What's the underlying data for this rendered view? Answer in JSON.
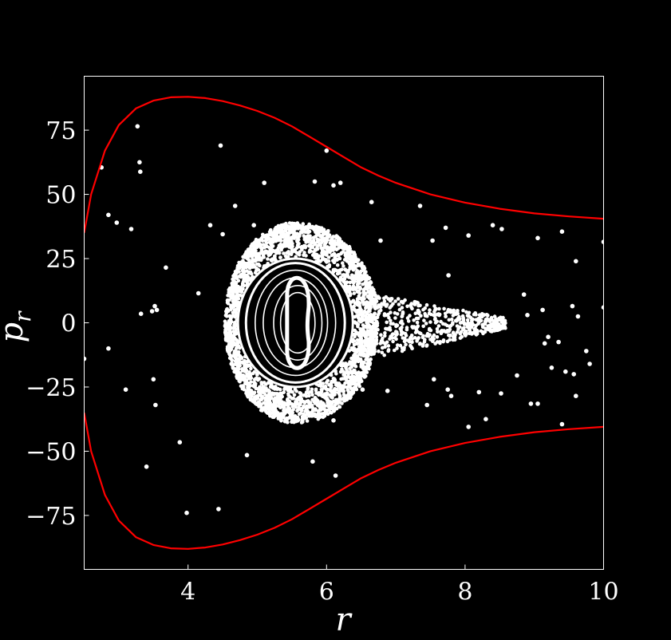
{
  "chart_data": {
    "type": "scatter",
    "title": "",
    "xlabel": "r",
    "ylabel": "p",
    "ylabel_sub": "r",
    "xlim": [
      2.5,
      10
    ],
    "ylim": [
      -96,
      96
    ],
    "xticks": [
      4,
      6,
      8,
      10
    ],
    "yticks": [
      -75,
      -50,
      -25,
      0,
      25,
      50,
      75
    ],
    "grid": false,
    "background": "#000000",
    "point_color": "#ffffff",
    "boundary_color": "#ff0000",
    "boundary": {
      "description": "upper curve p_r(r), mirrored for lower",
      "x": [
        2.5,
        2.6,
        2.8,
        3.0,
        3.25,
        3.5,
        3.75,
        4.0,
        4.25,
        4.5,
        4.75,
        5.0,
        5.25,
        5.5,
        5.75,
        6.0,
        6.25,
        6.5,
        6.75,
        7.0,
        7.5,
        8.0,
        8.5,
        9.0,
        9.5,
        10.0
      ],
      "y": [
        35,
        50,
        67,
        77,
        83.5,
        86.5,
        87.8,
        88,
        87.5,
        86.3,
        84.6,
        82.5,
        79.8,
        76.5,
        72.5,
        68.5,
        64.5,
        60.5,
        57.3,
        54.5,
        50,
        46.8,
        44.4,
        42.6,
        41.4,
        40.5
      ]
    },
    "scattered_points": {
      "x": [
        2.5,
        2.75,
        2.85,
        2.97,
        3.18,
        3.27,
        3.3,
        3.31,
        3.32,
        3.48,
        3.52,
        3.55,
        3.68,
        4.15,
        4.32,
        4.47,
        4.5,
        4.68,
        4.95,
        5.1,
        5.83,
        6.0,
        6.1,
        6.2,
        6.65,
        6.78,
        7.35,
        7.53,
        7.72,
        7.76,
        8.05,
        8.4,
        8.53,
        8.85,
        9.05,
        9.4,
        9.6,
        10.0,
        10.0,
        2.85,
        3.1,
        3.5,
        3.53,
        3.4,
        3.88,
        3.98,
        4.44,
        4.85,
        5.8,
        6.13,
        6.1,
        6.52,
        6.88,
        7.45,
        7.55,
        7.75,
        7.8,
        8.05,
        8.2,
        8.3,
        8.52,
        8.75,
        8.95,
        9.05,
        9.15,
        9.25,
        9.35,
        9.4,
        9.45,
        9.55,
        9.6,
        9.63,
        9.75,
        9.8,
        9.2,
        9.12,
        8.9,
        9.57
      ],
      "y": [
        -14,
        60.5,
        42,
        39,
        36.5,
        76.5,
        62.5,
        58.8,
        3.5,
        4.5,
        6.5,
        5,
        21.5,
        11.5,
        38,
        69,
        34.5,
        45.5,
        38,
        54.5,
        55,
        67,
        53.5,
        54.5,
        47,
        32,
        45.5,
        32,
        37,
        18.5,
        34,
        38,
        36.5,
        11,
        33,
        35.5,
        24,
        31.5,
        6,
        -10,
        -26,
        -22,
        -32,
        -56,
        -46.5,
        -74,
        -72.5,
        -51.5,
        -54,
        -59.5,
        -38,
        -26,
        -26.5,
        -32,
        -22,
        -26,
        -28.5,
        -40.5,
        -27,
        -37.5,
        -27.5,
        -20.5,
        -31.5,
        -31.5,
        -8,
        -17.5,
        -7.5,
        -39.5,
        -19,
        6.5,
        -28.5,
        2.5,
        -11,
        -16,
        -5.5,
        5,
        3,
        -20
      ]
    },
    "chaotic_sea": {
      "center_r": 5.55,
      "center_p": 0,
      "extent_r": [
        4.35,
        7.1
      ],
      "extent_p": [
        -38,
        40
      ],
      "tail_r": [
        6.6,
        8.6
      ],
      "tail_p": [
        -10,
        5
      ]
    },
    "island": {
      "center_r": 5.55,
      "center_p": 0,
      "outer_r_half": 0.83,
      "outer_p_half": 25,
      "inner_r_half": 0.12,
      "inner_p_half": 12
    }
  }
}
